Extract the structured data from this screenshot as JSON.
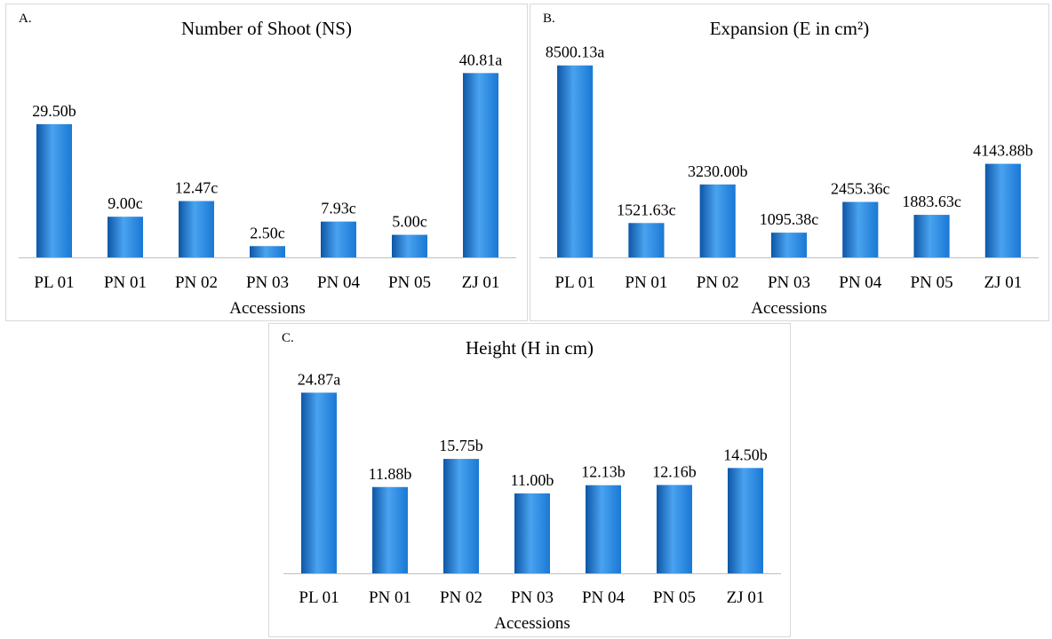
{
  "colors": {
    "bar": "#1a78d4",
    "bar_light": "#4aa3f0",
    "bar_dark": "#0d56a6",
    "axis": "#bfbfbf",
    "text": "#000000"
  },
  "chart_data": [
    {
      "type": "bar",
      "panel_label": "A.",
      "title": "Number of Shoot (NS)",
      "xlabel": "Accessions",
      "ylabel": "",
      "ylim": [
        0,
        45
      ],
      "grid": false,
      "categories": [
        "PL 01",
        "PN 01",
        "PN 02",
        "PN 03",
        "PN 04",
        "PN 05",
        "ZJ 01"
      ],
      "values": [
        29.5,
        9.0,
        12.47,
        2.5,
        7.93,
        5.0,
        40.81
      ],
      "data_labels": [
        "29.50b",
        "9.00c",
        "12.47c",
        "2.50c",
        "7.93c",
        "5.00c",
        "40.81a"
      ]
    },
    {
      "type": "bar",
      "panel_label": "B.",
      "title": "Expansion (E in cm²)",
      "xlabel": "Accessions",
      "ylabel": "",
      "ylim": [
        0,
        9000
      ],
      "grid": false,
      "categories": [
        "PL 01",
        "PN 01",
        "PN 02",
        "PN 03",
        "PN 04",
        "PN 05",
        "ZJ 01"
      ],
      "values": [
        8500.13,
        1521.63,
        3230.0,
        1095.38,
        2455.36,
        1883.63,
        4143.88
      ],
      "data_labels": [
        "8500.13a",
        "1521.63c",
        "3230.00b",
        "1095.38c",
        "2455.36c",
        "1883.63c",
        "4143.88b"
      ]
    },
    {
      "type": "bar",
      "panel_label": "C.",
      "title": "Height (H in cm)",
      "xlabel": "Accessions",
      "ylabel": "",
      "ylim": [
        0,
        27
      ],
      "grid": false,
      "categories": [
        "PL 01",
        "PN 01",
        "PN 02",
        "PN 03",
        "PN 04",
        "PN 05",
        "ZJ 01"
      ],
      "values": [
        24.87,
        11.88,
        15.75,
        11.0,
        12.13,
        12.16,
        14.5
      ],
      "data_labels": [
        "24.87a",
        "11.88b",
        "15.75b",
        "11.00b",
        "12.13b",
        "12.16b",
        "14.50b"
      ]
    }
  ]
}
